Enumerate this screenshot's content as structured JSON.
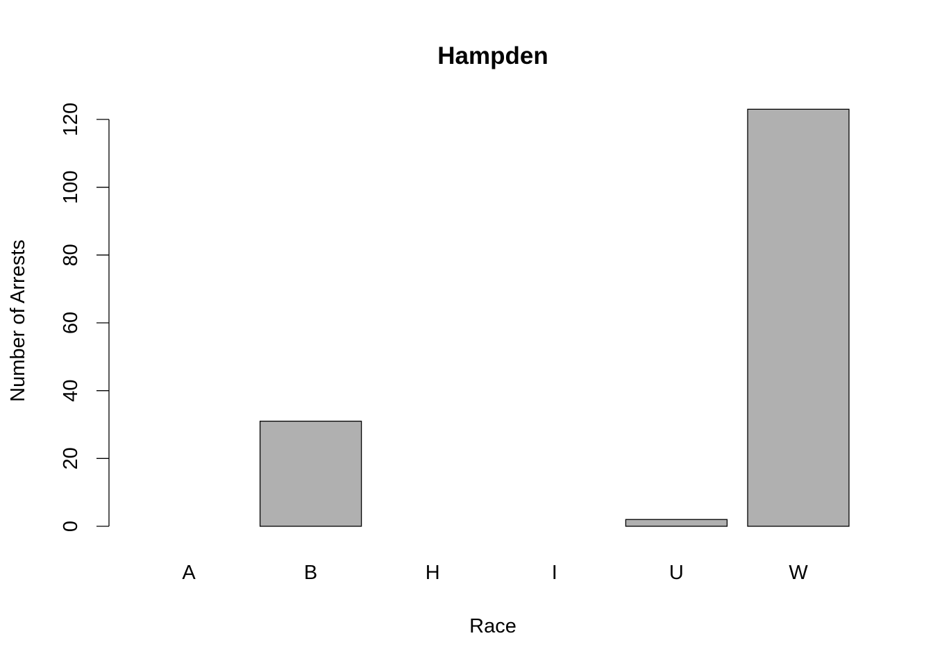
{
  "chart_data": {
    "type": "bar",
    "title": "Hampden",
    "xlabel": "Race",
    "ylabel": "Number of Arrests",
    "categories": [
      "A",
      "B",
      "H",
      "I",
      "U",
      "W"
    ],
    "values": [
      0,
      31,
      0,
      0,
      2,
      123
    ],
    "ylim": [
      0,
      120
    ],
    "yticks": [
      "0",
      "20",
      "40",
      "60",
      "80",
      "100",
      "120"
    ],
    "grid": false,
    "legend": "none",
    "bar_color": "#b0b0b0",
    "bar_edge_color": "#000000"
  }
}
